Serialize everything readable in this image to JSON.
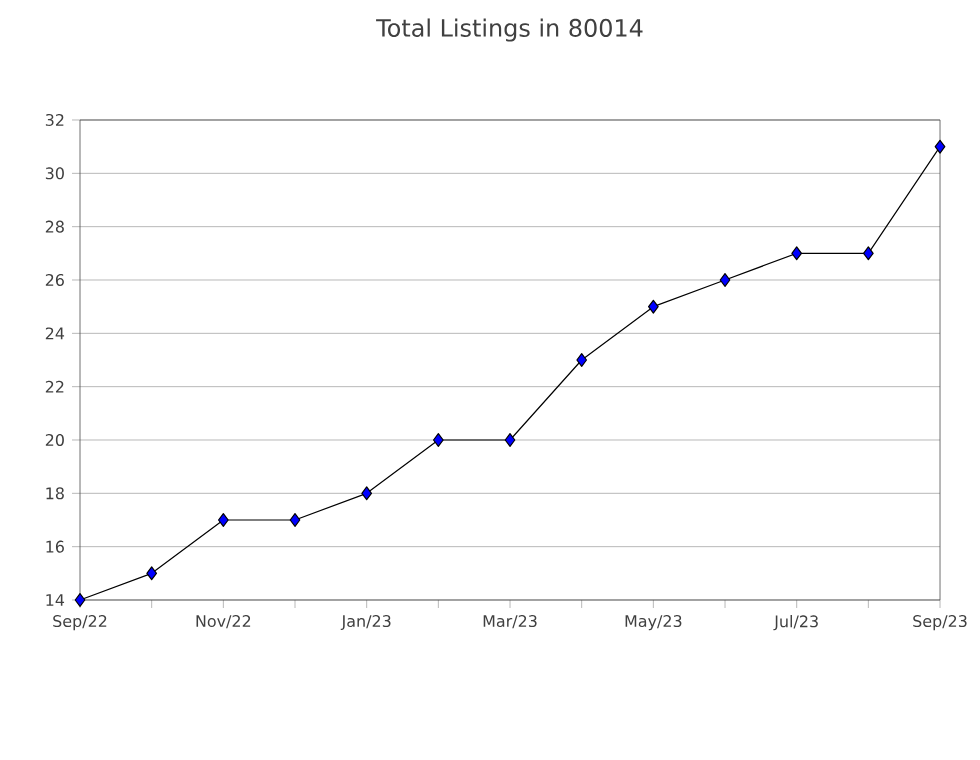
{
  "chart_data": {
    "type": "line",
    "title": "Total Listings in 80014",
    "categories": [
      "Sep/22",
      null,
      "Nov/22",
      null,
      "Jan/23",
      null,
      "Mar/23",
      null,
      "May/23",
      null,
      "Jul/23",
      null,
      "Sep/23"
    ],
    "series": [
      {
        "color": "#0000ff",
        "values": [
          14,
          15,
          17,
          17,
          18,
          20,
          20,
          23,
          25,
          26,
          27,
          27,
          31
        ]
      }
    ],
    "ylim": [
      14,
      32
    ],
    "yticks": [
      14,
      16,
      18,
      20,
      22,
      24,
      26,
      28,
      30,
      32
    ],
    "grid": "y",
    "marker": "diamond",
    "line_style": "solid"
  }
}
